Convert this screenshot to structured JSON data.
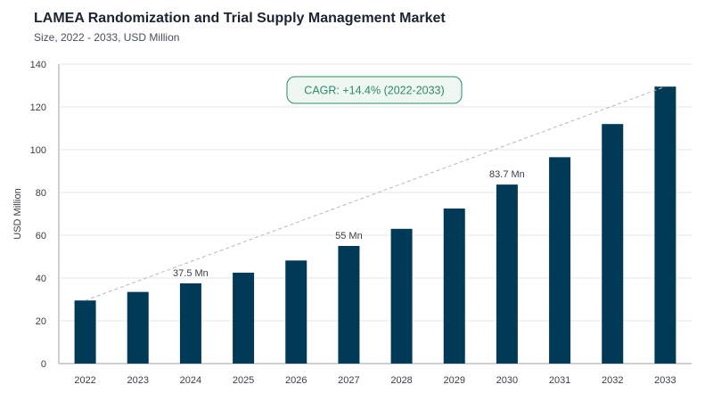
{
  "chart_data": {
    "type": "bar",
    "title": "LAMEA Randomization and Trial Supply Management Market",
    "subtitle": "Size, 2022 - 2033, USD Million",
    "xlabel": "",
    "ylabel": "USD Million",
    "ylim": [
      0,
      140
    ],
    "yticks": [
      0,
      20,
      40,
      60,
      80,
      100,
      120,
      140
    ],
    "grid": true,
    "categories": [
      "2022",
      "2023",
      "2024",
      "2025",
      "2026",
      "2027",
      "2028",
      "2029",
      "2030",
      "2031",
      "2032",
      "2033"
    ],
    "values": [
      29.5,
      33.5,
      37.5,
      42.5,
      48.2,
      55,
      63,
      72.5,
      83.7,
      96.5,
      112,
      129.5
    ],
    "data_labels": [
      {
        "index": 2,
        "text": "37.5 Mn"
      },
      {
        "index": 5,
        "text": "55 Mn"
      },
      {
        "index": 8,
        "text": "83.7 Mn"
      }
    ],
    "annotation": "CAGR: +14.4% (2022-2033)",
    "bar_color": "#003a57",
    "trend_color": "#b4b8bc",
    "annotation_color": "#2e8a62",
    "annotation_bg": "#eef7f2"
  }
}
